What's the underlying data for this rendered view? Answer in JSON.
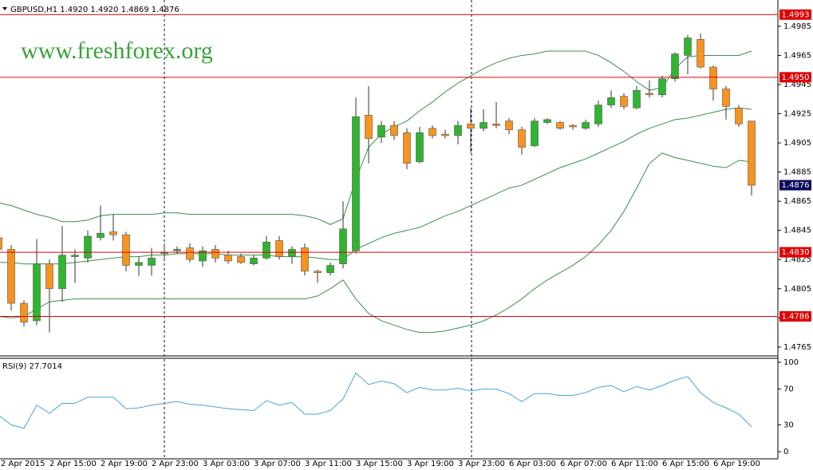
{
  "chart_data": [
    {
      "type": "candlestick",
      "title": "GBPUSD,H1  1.4920 1.4920 1.4869 1.4876",
      "watermark": "www.freshforex.org",
      "categories": [
        "2 Apr 2015",
        null,
        null,
        null,
        "2 Apr 15:00",
        null,
        null,
        null,
        "2 Apr 19:00",
        null,
        null,
        null,
        "2 Apr 23:00",
        null,
        null,
        null,
        "3 Apr 03:00",
        null,
        null,
        null,
        "3 Apr 07:00",
        null,
        null,
        null,
        "3 Apr 11:00",
        null,
        null,
        null,
        "3 Apr 15:00",
        null,
        null,
        null,
        "3 Apr 19:00",
        null,
        null,
        null,
        "3 Apr 23:00",
        null,
        null,
        null,
        "6 Apr 03:00",
        null,
        null,
        null,
        "6 Apr 07:00",
        null,
        null,
        null,
        "6 Apr 11:00",
        null,
        null,
        null,
        "6 Apr 15:00",
        null,
        null,
        null,
        "6 Apr 19:00",
        null,
        null,
        null
      ],
      "open": [
        1.484,
        1.4832,
        1.4795,
        1.4783,
        1.4822,
        1.4805,
        1.4827,
        1.4826,
        1.484,
        1.4844,
        1.4842,
        1.4821,
        1.4821,
        1.4829,
        1.4831,
        1.4833,
        1.4824,
        1.4832,
        1.4828,
        1.4827,
        1.4822,
        1.4826,
        1.4838,
        1.4827,
        1.4833,
        1.4817,
        1.4816,
        1.4822,
        1.4831,
        1.4924,
        1.4909,
        1.4917,
        1.4912,
        1.4892,
        1.4915,
        1.4911,
        1.491,
        1.4918,
        1.4915,
        1.4918,
        1.492,
        1.4914,
        1.4903,
        1.4919,
        1.4919,
        1.4917,
        1.4915,
        1.4918,
        1.4931,
        1.4937,
        1.4929,
        1.4939,
        1.4938,
        1.4949,
        1.4965,
        1.4976,
        1.4957,
        1.4942,
        1.4929,
        1.492
      ],
      "high": [
        1.4845,
        1.4835,
        1.4797,
        1.4839,
        1.4825,
        1.4848,
        1.4832,
        1.4845,
        1.4862,
        1.4856,
        1.4844,
        1.4827,
        1.4833,
        1.4836,
        1.4834,
        1.4836,
        1.4834,
        1.4835,
        1.4831,
        1.4829,
        1.4828,
        1.4841,
        1.4841,
        1.4834,
        1.4836,
        1.4818,
        1.4823,
        1.4865,
        1.4936,
        1.4944,
        1.492,
        1.492,
        1.4915,
        1.4916,
        1.4917,
        1.4914,
        1.492,
        1.4929,
        1.4928,
        1.4933,
        1.4922,
        1.4916,
        1.4922,
        1.4922,
        1.492,
        1.4918,
        1.4921,
        1.4934,
        1.4941,
        1.4939,
        1.4944,
        1.4948,
        1.4951,
        1.4967,
        1.4979,
        1.498,
        1.4958,
        1.4944,
        1.4931,
        1.492
      ],
      "low": [
        1.4828,
        1.479,
        1.4779,
        1.478,
        1.4775,
        1.4796,
        1.4809,
        1.4823,
        1.4838,
        1.4838,
        1.4817,
        1.4814,
        1.4814,
        1.4825,
        1.4829,
        1.4823,
        1.482,
        1.4823,
        1.4822,
        1.4822,
        1.4821,
        1.4825,
        1.4825,
        1.4822,
        1.4814,
        1.4809,
        1.4814,
        1.4819,
        1.4829,
        1.4891,
        1.4905,
        1.4907,
        1.4887,
        1.4891,
        1.4908,
        1.4908,
        1.4904,
        1.4898,
        1.4913,
        1.4915,
        1.4911,
        1.4897,
        1.4902,
        1.4918,
        1.4914,
        1.4914,
        1.4914,
        1.4916,
        1.4929,
        1.4928,
        1.4928,
        1.4936,
        1.4936,
        1.4947,
        1.4952,
        1.4956,
        1.4934,
        1.4921,
        1.4916,
        1.4869
      ],
      "close": [
        1.4832,
        1.4795,
        1.4782,
        1.4822,
        1.4805,
        1.4828,
        1.4828,
        1.4841,
        1.4843,
        1.4842,
        1.4821,
        1.4823,
        1.4826,
        1.483,
        1.4832,
        1.4825,
        1.4831,
        1.4826,
        1.4824,
        1.4823,
        1.4826,
        1.4837,
        1.4827,
        1.4832,
        1.4817,
        1.4816,
        1.4821,
        1.4846,
        1.4923,
        1.4908,
        1.4917,
        1.491,
        1.4891,
        1.4912,
        1.491,
        1.491,
        1.4917,
        1.4915,
        1.4919,
        1.4917,
        1.4914,
        1.4902,
        1.492,
        1.4921,
        1.4915,
        1.4916,
        1.4919,
        1.4931,
        1.4936,
        1.493,
        1.4941,
        1.4938,
        1.4949,
        1.4966,
        1.4977,
        1.4957,
        1.4942,
        1.493,
        1.4918,
        1.4876
      ],
      "up_color": "#2fb52f",
      "down_color": "#f7931e",
      "bands": [
        {
          "color": "#3b8f4a",
          "values": [
            1.4864,
            1.4862,
            1.4859,
            1.4856,
            1.4854,
            1.4851,
            1.4851,
            1.4852,
            1.4855,
            1.4856,
            1.4856,
            1.4856,
            1.4856,
            1.4857,
            1.4857,
            1.4856,
            1.4856,
            1.4856,
            1.4856,
            1.4856,
            1.4856,
            1.4856,
            1.4856,
            1.4856,
            1.4855,
            1.4853,
            1.4849,
            1.4853,
            1.488,
            1.4902,
            1.4911,
            1.4916,
            1.492,
            1.4927,
            1.4933,
            1.494,
            1.4946,
            1.4951,
            1.4956,
            1.496,
            1.4963,
            1.4965,
            1.4966,
            1.4968,
            1.4968,
            1.4968,
            1.4968,
            1.4965,
            1.496,
            1.4954,
            1.4947,
            1.4941,
            1.4943,
            1.4956,
            1.4964,
            1.4965,
            1.4965,
            1.4965,
            1.4965,
            1.4968
          ]
        },
        {
          "color": "#3b8f4a",
          "values": [
            1.4823,
            1.4823,
            1.4822,
            1.4822,
            1.4822,
            1.4822,
            1.4823,
            1.4824,
            1.4825,
            1.4826,
            1.4827,
            1.4827,
            1.4828,
            1.4828,
            1.4829,
            1.4829,
            1.4829,
            1.4829,
            1.4828,
            1.4828,
            1.4828,
            1.4828,
            1.4827,
            1.4827,
            1.4827,
            1.4826,
            1.4825,
            1.4825,
            1.4832,
            1.4836,
            1.484,
            1.4843,
            1.4845,
            1.4847,
            1.4851,
            1.4855,
            1.4858,
            1.4862,
            1.4866,
            1.487,
            1.4874,
            1.4876,
            1.488,
            1.4884,
            1.4888,
            1.4891,
            1.4894,
            1.4898,
            1.4902,
            1.4906,
            1.4911,
            1.4915,
            1.4918,
            1.4921,
            1.4922,
            1.4924,
            1.4926,
            1.4928,
            1.4929,
            1.4928
          ]
        },
        {
          "color": "#3b8f4a",
          "values": [
            1.4786,
            1.4785,
            1.4786,
            1.4791,
            1.4796,
            1.4797,
            1.4798,
            1.4798,
            1.4798,
            1.4798,
            1.4798,
            1.4798,
            1.4798,
            1.4798,
            1.4798,
            1.4798,
            1.4798,
            1.4798,
            1.4798,
            1.4798,
            1.4798,
            1.4798,
            1.4798,
            1.4798,
            1.4798,
            1.48,
            1.4805,
            1.4811,
            1.4798,
            1.4788,
            1.4783,
            1.478,
            1.4777,
            1.4775,
            1.4775,
            1.4776,
            1.4778,
            1.478,
            1.4783,
            1.4787,
            1.4792,
            1.4798,
            1.4805,
            1.4811,
            1.4816,
            1.4821,
            1.4827,
            1.4835,
            1.4845,
            1.4858,
            1.4874,
            1.4891,
            1.4898,
            1.4895,
            1.4893,
            1.4891,
            1.4889,
            1.4888,
            1.4893,
            1.4892
          ]
        }
      ],
      "levels": [
        {
          "value": 1.4993,
          "label": "1.4993"
        },
        {
          "value": 1.495,
          "label": "1.4950"
        },
        {
          "value": 1.483,
          "label": "1.4830"
        },
        {
          "value": 1.4786,
          "label": "1.4786"
        }
      ],
      "level_color": "#e00000",
      "last_color": "#0a0a5a",
      "ylim": [
        1.476,
        1.5
      ],
      "yticks": [
        1.4985,
        1.4965,
        1.4945,
        1.4925,
        1.4905,
        1.4885,
        1.4865,
        1.4845,
        1.4825,
        1.4805,
        1.4785,
        1.4765
      ]
    },
    {
      "type": "line",
      "title": "RSI(9) 27.7014",
      "color": "#4aa3df",
      "values": [
        41,
        30,
        26,
        52,
        43,
        54,
        54,
        61,
        61,
        61,
        48,
        49,
        52,
        54,
        56,
        53,
        52,
        50,
        48,
        47,
        46,
        57,
        52,
        55,
        42,
        42,
        46,
        59,
        88,
        75,
        79,
        76,
        66,
        72,
        69,
        69,
        71,
        68,
        70,
        70,
        65,
        56,
        65,
        65,
        63,
        63,
        66,
        72,
        74,
        67,
        73,
        69,
        74,
        80,
        84,
        66,
        55,
        49,
        42,
        27.7
      ],
      "ylim": [
        0,
        100
      ],
      "yticks": [
        100,
        70,
        30,
        0
      ]
    }
  ]
}
